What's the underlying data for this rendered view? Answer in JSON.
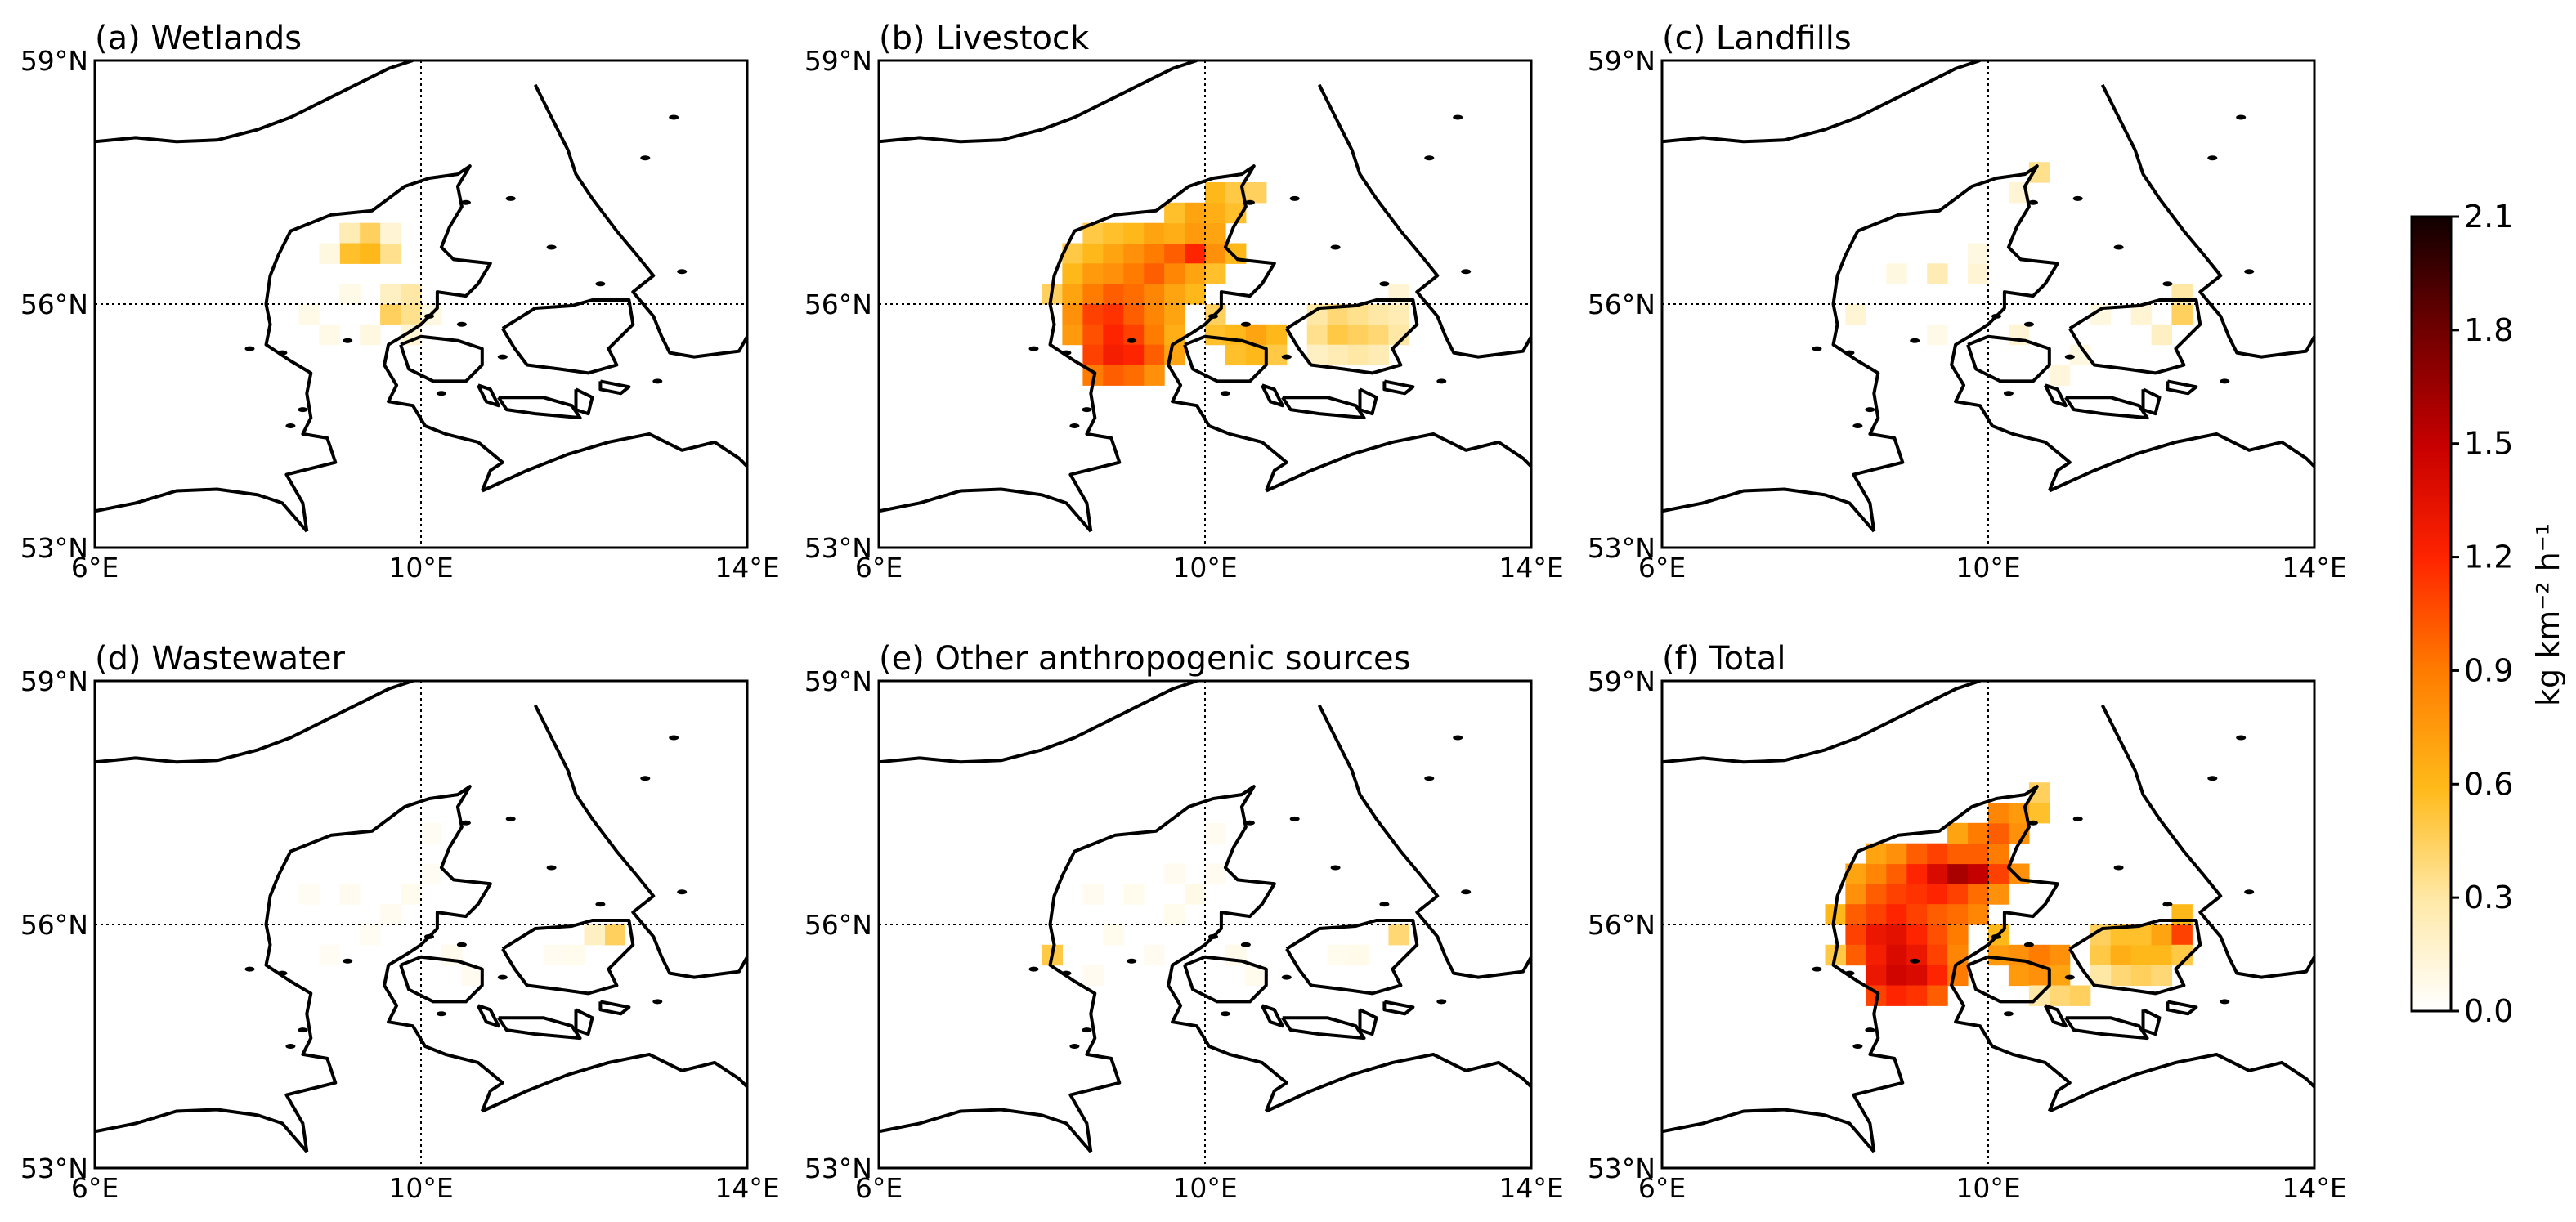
{
  "figure": {
    "panels": [
      {
        "id": "a",
        "title": "(a) Wetlands"
      },
      {
        "id": "b",
        "title": "(b) Livestock"
      },
      {
        "id": "c",
        "title": "(c) Landfills"
      },
      {
        "id": "d",
        "title": "(d) Wastewater"
      },
      {
        "id": "e",
        "title": "(e) Other anthropogenic sources"
      },
      {
        "id": "f",
        "title": "(f) Total"
      }
    ],
    "lat_ticks": [
      "53°N",
      "56°N",
      "59°N"
    ],
    "lon_ticks": [
      "6°E",
      "10°E",
      "14°E"
    ],
    "colorbar": {
      "label": "kg km⁻² h⁻¹",
      "ticks": [
        "0.0",
        "0.3",
        "0.6",
        "0.9",
        "1.2",
        "1.5",
        "1.8",
        "2.1"
      ],
      "range": [
        0,
        2.1
      ]
    }
  },
  "chart_data": {
    "type": "heatmap",
    "lon_range": [
      6,
      14
    ],
    "lat_range": [
      53,
      59
    ],
    "cell_size_deg": [
      0.25,
      0.25
    ],
    "vmin": 0.0,
    "vmax": 2.1,
    "panels": [
      {
        "title": "(a) Wetlands",
        "cells": [
          [
            9.0,
            56.75,
            0.25
          ],
          [
            9.25,
            56.75,
            0.45
          ],
          [
            9.0,
            56.5,
            0.55
          ],
          [
            9.25,
            56.5,
            0.6
          ],
          [
            9.5,
            56.5,
            0.35
          ],
          [
            8.75,
            56.5,
            0.1
          ],
          [
            9.5,
            56.75,
            0.15
          ],
          [
            9.75,
            56.0,
            0.3
          ],
          [
            9.5,
            56.0,
            0.2
          ],
          [
            9.5,
            55.75,
            0.45
          ],
          [
            9.75,
            55.75,
            0.35
          ],
          [
            8.5,
            55.75,
            0.08
          ],
          [
            8.75,
            55.5,
            0.08
          ],
          [
            9.25,
            55.5,
            0.1
          ],
          [
            9.75,
            55.5,
            0.15
          ],
          [
            10.0,
            55.75,
            0.1
          ],
          [
            9.0,
            56.0,
            0.08
          ]
        ]
      },
      {
        "title": "(b) Livestock",
        "cells": [
          [
            8.25,
            56.5,
            0.5
          ],
          [
            8.5,
            56.5,
            0.6
          ],
          [
            8.75,
            56.5,
            0.7
          ],
          [
            9.0,
            56.5,
            0.8
          ],
          [
            9.25,
            56.5,
            0.9
          ],
          [
            9.5,
            56.5,
            1.0
          ],
          [
            9.75,
            56.5,
            1.2
          ],
          [
            10.0,
            56.5,
            0.8
          ],
          [
            10.25,
            56.5,
            0.6
          ],
          [
            8.5,
            56.75,
            0.5
          ],
          [
            8.75,
            56.75,
            0.55
          ],
          [
            9.0,
            56.75,
            0.6
          ],
          [
            9.25,
            56.75,
            0.7
          ],
          [
            9.5,
            56.75,
            0.65
          ],
          [
            9.75,
            56.75,
            0.75
          ],
          [
            10.0,
            56.75,
            0.7
          ],
          [
            9.5,
            57.0,
            0.55
          ],
          [
            9.75,
            57.0,
            0.7
          ],
          [
            10.0,
            57.0,
            0.65
          ],
          [
            10.25,
            57.0,
            0.55
          ],
          [
            10.0,
            57.25,
            0.6
          ],
          [
            10.25,
            57.25,
            0.5
          ],
          [
            10.5,
            57.25,
            0.45
          ],
          [
            8.25,
            56.25,
            0.6
          ],
          [
            8.5,
            56.25,
            0.75
          ],
          [
            8.75,
            56.25,
            0.8
          ],
          [
            9.0,
            56.25,
            0.9
          ],
          [
            9.25,
            56.25,
            1.0
          ],
          [
            9.5,
            56.25,
            0.85
          ],
          [
            9.75,
            56.25,
            0.7
          ],
          [
            10.0,
            56.25,
            0.55
          ],
          [
            8.0,
            56.0,
            0.45
          ],
          [
            8.25,
            56.0,
            0.7
          ],
          [
            8.5,
            56.0,
            0.9
          ],
          [
            8.75,
            56.0,
            1.0
          ],
          [
            9.0,
            56.0,
            0.95
          ],
          [
            9.25,
            56.0,
            0.85
          ],
          [
            9.5,
            56.0,
            0.7
          ],
          [
            9.75,
            56.0,
            0.6
          ],
          [
            8.25,
            55.75,
            0.8
          ],
          [
            8.5,
            55.75,
            1.1
          ],
          [
            8.75,
            55.75,
            1.15
          ],
          [
            9.0,
            55.75,
            1.0
          ],
          [
            9.25,
            55.75,
            0.85
          ],
          [
            9.5,
            55.75,
            0.7
          ],
          [
            8.25,
            55.5,
            0.75
          ],
          [
            8.5,
            55.5,
            1.05
          ],
          [
            8.75,
            55.5,
            1.2
          ],
          [
            9.0,
            55.5,
            1.1
          ],
          [
            9.25,
            55.5,
            0.9
          ],
          [
            9.5,
            55.5,
            0.65
          ],
          [
            8.5,
            55.25,
            1.1
          ],
          [
            8.75,
            55.25,
            1.25
          ],
          [
            9.0,
            55.25,
            1.2
          ],
          [
            9.25,
            55.25,
            1.0
          ],
          [
            9.5,
            55.25,
            0.7
          ],
          [
            8.5,
            55.0,
            0.9
          ],
          [
            8.75,
            55.0,
            1.0
          ],
          [
            9.0,
            55.0,
            0.95
          ],
          [
            9.25,
            55.0,
            0.8
          ],
          [
            10.0,
            55.5,
            0.55
          ],
          [
            10.25,
            55.5,
            0.6
          ],
          [
            10.5,
            55.5,
            0.7
          ],
          [
            10.75,
            55.5,
            0.6
          ],
          [
            10.25,
            55.25,
            0.55
          ],
          [
            10.5,
            55.25,
            0.6
          ],
          [
            10.75,
            55.25,
            0.5
          ],
          [
            10.0,
            55.75,
            0.45
          ],
          [
            11.25,
            55.5,
            0.35
          ],
          [
            11.5,
            55.5,
            0.5
          ],
          [
            11.75,
            55.5,
            0.45
          ],
          [
            12.0,
            55.5,
            0.4
          ],
          [
            11.25,
            55.75,
            0.3
          ],
          [
            11.5,
            55.75,
            0.4
          ],
          [
            11.75,
            55.75,
            0.35
          ],
          [
            12.0,
            55.75,
            0.3
          ],
          [
            11.5,
            55.25,
            0.25
          ],
          [
            11.75,
            55.25,
            0.3
          ],
          [
            12.0,
            55.25,
            0.25
          ],
          [
            12.25,
            55.5,
            0.3
          ],
          [
            12.25,
            55.75,
            0.25
          ],
          [
            11.25,
            55.25,
            0.2
          ],
          [
            12.25,
            56.0,
            0.15
          ]
        ]
      },
      {
        "title": "(c) Landfills",
        "cells": [
          [
            10.5,
            57.5,
            0.35
          ],
          [
            10.25,
            57.25,
            0.15
          ],
          [
            9.25,
            56.25,
            0.25
          ],
          [
            8.75,
            56.25,
            0.1
          ],
          [
            9.75,
            56.25,
            0.15
          ],
          [
            9.75,
            56.5,
            0.1
          ],
          [
            8.25,
            55.75,
            0.15
          ],
          [
            12.25,
            55.75,
            0.45
          ],
          [
            12.25,
            56.0,
            0.3
          ],
          [
            12.0,
            55.5,
            0.2
          ],
          [
            11.75,
            55.75,
            0.15
          ],
          [
            11.25,
            55.75,
            0.1
          ],
          [
            10.25,
            55.5,
            0.15
          ],
          [
            11.0,
            55.25,
            0.1
          ],
          [
            10.75,
            55.0,
            0.12
          ],
          [
            9.25,
            55.5,
            0.08
          ]
        ]
      },
      {
        "title": "(d) Wastewater",
        "cells": [
          [
            12.25,
            55.75,
            0.45
          ],
          [
            12.0,
            55.75,
            0.2
          ],
          [
            9.75,
            56.25,
            0.06
          ],
          [
            9.5,
            56.0,
            0.05
          ],
          [
            8.5,
            56.25,
            0.04
          ],
          [
            9.0,
            56.25,
            0.05
          ],
          [
            10.0,
            56.5,
            0.04
          ],
          [
            8.75,
            55.5,
            0.04
          ],
          [
            9.25,
            55.75,
            0.04
          ],
          [
            10.25,
            55.5,
            0.06
          ],
          [
            11.5,
            55.5,
            0.05
          ],
          [
            11.75,
            55.5,
            0.06
          ],
          [
            10.0,
            57.0,
            0.04
          ],
          [
            10.5,
            55.25,
            0.05
          ]
        ]
      },
      {
        "title": "(e) Other anthropogenic sources",
        "cells": [
          [
            8.0,
            55.5,
            0.5
          ],
          [
            12.25,
            55.75,
            0.4
          ],
          [
            9.75,
            56.25,
            0.08
          ],
          [
            9.5,
            56.0,
            0.06
          ],
          [
            8.5,
            56.25,
            0.05
          ],
          [
            9.0,
            56.25,
            0.06
          ],
          [
            10.0,
            56.5,
            0.05
          ],
          [
            8.75,
            55.75,
            0.06
          ],
          [
            9.25,
            55.5,
            0.05
          ],
          [
            10.25,
            55.5,
            0.07
          ],
          [
            11.5,
            55.5,
            0.06
          ],
          [
            11.75,
            55.5,
            0.07
          ],
          [
            10.0,
            57.0,
            0.05
          ],
          [
            10.5,
            55.25,
            0.06
          ],
          [
            9.5,
            56.5,
            0.05
          ],
          [
            8.5,
            55.25,
            0.05
          ]
        ]
      },
      {
        "title": "(f) Total",
        "cells": [
          [
            8.25,
            56.5,
            0.7
          ],
          [
            8.5,
            56.5,
            0.85
          ],
          [
            8.75,
            56.5,
            1.0
          ],
          [
            9.0,
            56.5,
            1.2
          ],
          [
            9.25,
            56.5,
            1.4
          ],
          [
            9.5,
            56.5,
            1.6
          ],
          [
            9.75,
            56.5,
            1.5
          ],
          [
            10.0,
            56.5,
            1.1
          ],
          [
            10.25,
            56.5,
            0.8
          ],
          [
            8.5,
            56.75,
            0.7
          ],
          [
            8.75,
            56.75,
            0.8
          ],
          [
            9.0,
            56.75,
            1.0
          ],
          [
            9.25,
            56.75,
            1.1
          ],
          [
            9.5,
            56.75,
            1.0
          ],
          [
            9.75,
            56.75,
            1.0
          ],
          [
            10.0,
            56.75,
            0.9
          ],
          [
            9.5,
            57.0,
            0.7
          ],
          [
            9.75,
            57.0,
            0.9
          ],
          [
            10.0,
            57.0,
            1.0
          ],
          [
            10.25,
            57.0,
            0.8
          ],
          [
            10.0,
            57.25,
            0.85
          ],
          [
            10.25,
            57.25,
            0.75
          ],
          [
            10.5,
            57.5,
            0.45
          ],
          [
            10.5,
            57.25,
            0.55
          ],
          [
            8.25,
            56.25,
            0.8
          ],
          [
            8.5,
            56.25,
            1.0
          ],
          [
            8.75,
            56.25,
            1.1
          ],
          [
            9.0,
            56.25,
            1.15
          ],
          [
            9.25,
            56.25,
            1.2
          ],
          [
            9.5,
            56.25,
            1.1
          ],
          [
            9.75,
            56.25,
            0.95
          ],
          [
            10.0,
            56.25,
            0.8
          ],
          [
            8.0,
            56.0,
            0.6
          ],
          [
            8.25,
            56.0,
            1.0
          ],
          [
            8.5,
            56.0,
            1.1
          ],
          [
            8.75,
            56.0,
            1.2
          ],
          [
            9.0,
            56.0,
            1.1
          ],
          [
            9.25,
            56.0,
            1.0
          ],
          [
            9.5,
            56.0,
            0.95
          ],
          [
            9.75,
            56.0,
            0.85
          ],
          [
            8.25,
            55.75,
            1.1
          ],
          [
            8.5,
            55.75,
            1.3
          ],
          [
            8.75,
            55.75,
            1.35
          ],
          [
            9.0,
            55.75,
            1.2
          ],
          [
            9.25,
            55.75,
            1.05
          ],
          [
            9.5,
            55.75,
            0.9
          ],
          [
            8.25,
            55.5,
            1.0
          ],
          [
            8.5,
            55.5,
            1.25
          ],
          [
            8.75,
            55.5,
            1.4
          ],
          [
            9.0,
            55.5,
            1.3
          ],
          [
            9.25,
            55.5,
            1.1
          ],
          [
            9.5,
            55.5,
            0.85
          ],
          [
            8.5,
            55.25,
            1.3
          ],
          [
            8.75,
            55.25,
            1.45
          ],
          [
            9.0,
            55.25,
            1.4
          ],
          [
            9.25,
            55.25,
            1.2
          ],
          [
            9.5,
            55.25,
            0.9
          ],
          [
            8.5,
            55.0,
            1.1
          ],
          [
            8.75,
            55.0,
            1.2
          ],
          [
            9.0,
            55.0,
            1.15
          ],
          [
            9.25,
            55.0,
            1.0
          ],
          [
            10.0,
            55.5,
            0.75
          ],
          [
            10.25,
            55.5,
            0.8
          ],
          [
            10.5,
            55.5,
            0.9
          ],
          [
            10.75,
            55.5,
            0.8
          ],
          [
            10.25,
            55.25,
            0.75
          ],
          [
            10.5,
            55.25,
            0.8
          ],
          [
            10.75,
            55.25,
            0.7
          ],
          [
            10.0,
            55.75,
            0.6
          ],
          [
            11.25,
            55.5,
            0.5
          ],
          [
            11.5,
            55.5,
            0.65
          ],
          [
            11.75,
            55.5,
            0.6
          ],
          [
            12.0,
            55.5,
            0.6
          ],
          [
            11.25,
            55.75,
            0.45
          ],
          [
            11.5,
            55.75,
            0.55
          ],
          [
            11.75,
            55.75,
            0.55
          ],
          [
            12.0,
            55.75,
            0.7
          ],
          [
            12.25,
            55.75,
            1.1
          ],
          [
            12.25,
            56.0,
            0.6
          ],
          [
            11.5,
            55.25,
            0.4
          ],
          [
            11.75,
            55.25,
            0.45
          ],
          [
            12.0,
            55.25,
            0.4
          ],
          [
            11.25,
            55.25,
            0.3
          ],
          [
            12.25,
            55.5,
            0.5
          ],
          [
            10.75,
            55.0,
            0.4
          ],
          [
            11.0,
            55.0,
            0.45
          ],
          [
            10.5,
            55.0,
            0.3
          ],
          [
            8.0,
            55.5,
            0.5
          ]
        ]
      }
    ]
  }
}
